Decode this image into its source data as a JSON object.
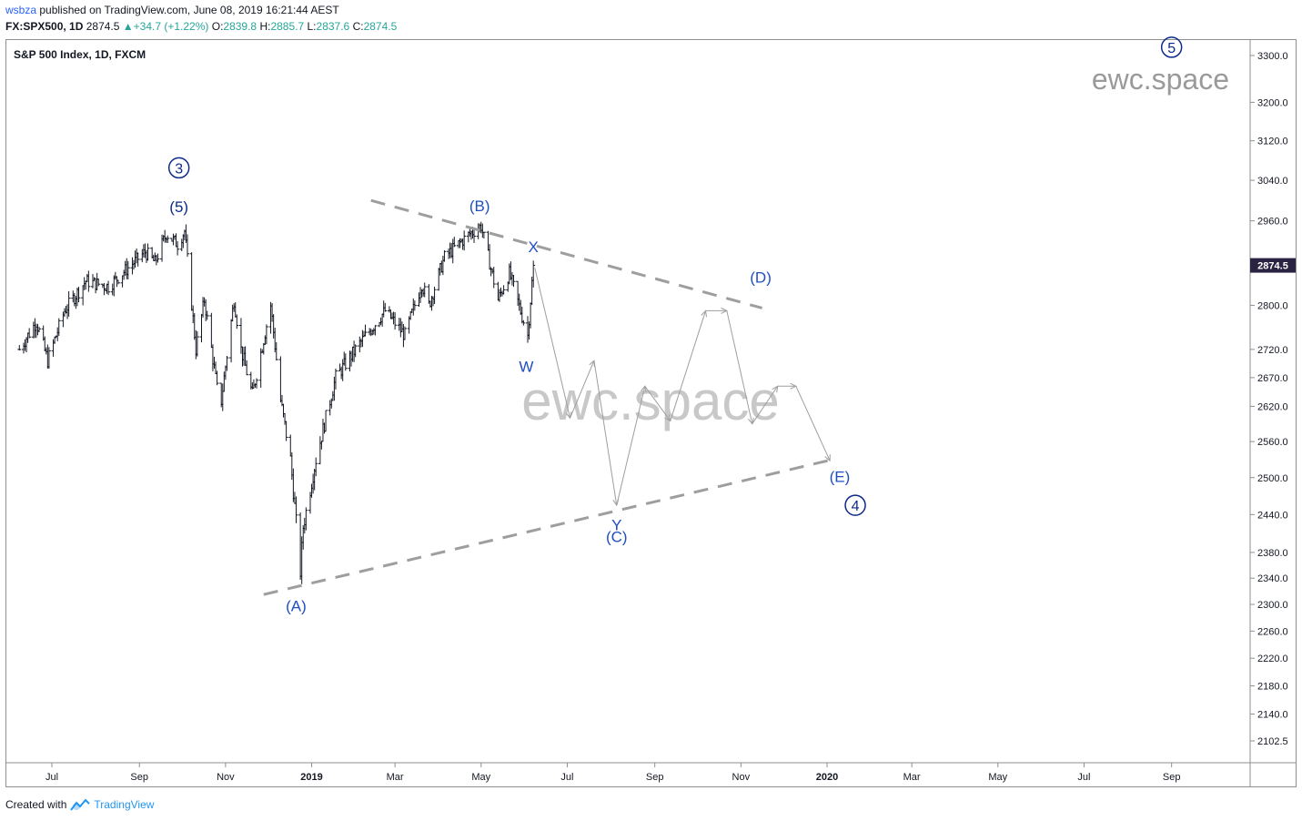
{
  "header": {
    "username": "wsbza",
    "published_text": "published on TradingView.com, June 08, 2019 16:21:44 AEST",
    "symbol": "FX:SPX500, 1D",
    "price": "2874.5",
    "change": "+34.7 (+1.22%)",
    "ohlc": {
      "o_label": "O:",
      "o": "2839.8",
      "h_label": "H:",
      "h": "2885.7",
      "l_label": "L:",
      "l": "2837.6",
      "c_label": "C:",
      "c": "2874.5"
    }
  },
  "chart_title": "S&P 500 Index, 1D, FXCM",
  "watermarks": [
    "ewc.space",
    "ewc.space"
  ],
  "last_price_label": "2874.5",
  "footer": {
    "created_with": "Created with",
    "brand": "TradingView"
  },
  "colors": {
    "candle": "#131722",
    "wave_label": "#1e4fc2",
    "wave_label_dark": "#0d2a8a",
    "trendline": "#9e9e9e",
    "projection": "#9e9e9e",
    "watermark": "#c8c8c8",
    "up": "#26a69a"
  },
  "chart_data": {
    "type": "ohlc-bar",
    "xlabel": "",
    "ylabel": "",
    "x_ticks": [
      {
        "label": "Jul",
        "date": "2018-07-01"
      },
      {
        "label": "Sep",
        "date": "2018-09-01"
      },
      {
        "label": "Nov",
        "date": "2018-11-01"
      },
      {
        "label": "2019",
        "date": "2019-01-01",
        "bold": true
      },
      {
        "label": "Mar",
        "date": "2019-03-01"
      },
      {
        "label": "May",
        "date": "2019-05-01"
      },
      {
        "label": "Jul",
        "date": "2019-07-01"
      },
      {
        "label": "Sep",
        "date": "2019-09-01"
      },
      {
        "label": "Nov",
        "date": "2019-11-01"
      },
      {
        "label": "2020",
        "date": "2020-01-01",
        "bold": true
      },
      {
        "label": "Mar",
        "date": "2020-03-01"
      },
      {
        "label": "May",
        "date": "2020-05-01"
      },
      {
        "label": "Jul",
        "date": "2020-07-01"
      },
      {
        "label": "Sep",
        "date": "2020-09-01"
      }
    ],
    "y_scale": "log",
    "y_ticks": [
      "3300.0",
      "3200.0",
      "3120.0",
      "3040.0",
      "2960.0",
      "2800.0",
      "2720.0",
      "2670.0",
      "2620.0",
      "2560.0",
      "2500.0",
      "2440.0",
      "2380.0",
      "2340.0",
      "2300.0",
      "2260.0",
      "2220.0",
      "2180.0",
      "2140.0",
      "2102.5"
    ],
    "price_path": [
      [
        "2018-06-08",
        2720
      ],
      [
        "2018-06-20",
        2770
      ],
      [
        "2018-06-28",
        2700
      ],
      [
        "2018-07-10",
        2790
      ],
      [
        "2018-07-25",
        2845
      ],
      [
        "2018-08-10",
        2835
      ],
      [
        "2018-08-20",
        2860
      ],
      [
        "2018-09-05",
        2900
      ],
      [
        "2018-09-12",
        2880
      ],
      [
        "2018-09-20",
        2935
      ],
      [
        "2018-09-28",
        2915
      ],
      [
        "2018-10-03",
        2940
      ],
      [
        "2018-10-11",
        2720
      ],
      [
        "2018-10-17",
        2810
      ],
      [
        "2018-10-26",
        2650
      ],
      [
        "2018-10-29",
        2630
      ],
      [
        "2018-11-07",
        2810
      ],
      [
        "2018-11-12",
        2720
      ],
      [
        "2018-11-20",
        2640
      ],
      [
        "2018-12-03",
        2800
      ],
      [
        "2018-12-10",
        2630
      ],
      [
        "2018-12-17",
        2530
      ],
      [
        "2018-12-24",
        2350
      ],
      [
        "2018-12-26",
        2420
      ],
      [
        "2019-01-04",
        2530
      ],
      [
        "2019-01-18",
        2670
      ],
      [
        "2019-02-04",
        2730
      ],
      [
        "2019-02-22",
        2790
      ],
      [
        "2019-03-08",
        2745
      ],
      [
        "2019-03-20",
        2840
      ],
      [
        "2019-03-25",
        2800
      ],
      [
        "2019-04-05",
        2890
      ],
      [
        "2019-04-23",
        2935
      ],
      [
        "2019-05-01",
        2950
      ],
      [
        "2019-05-07",
        2880
      ],
      [
        "2019-05-13",
        2810
      ],
      [
        "2019-05-21",
        2860
      ],
      [
        "2019-06-03",
        2745
      ],
      [
        "2019-06-07",
        2874.5
      ]
    ],
    "trendlines": [
      {
        "from": [
          "2018-11-28",
          2315
        ],
        "to": [
          "2020-01-05",
          2530
        ]
      },
      {
        "from": [
          "2019-02-12",
          3000
        ],
        "to": [
          "2019-11-16",
          2795
        ]
      }
    ],
    "projection_path": [
      [
        "2019-06-08",
        2870
      ],
      [
        "2019-07-03",
        2600
      ],
      [
        "2019-07-20",
        2700
      ],
      [
        "2019-08-05",
        2455
      ],
      [
        "2019-08-25",
        2655
      ],
      [
        "2019-09-12",
        2595
      ],
      [
        "2019-10-07",
        2790
      ],
      [
        "2019-10-22",
        2790
      ],
      [
        "2019-11-09",
        2590
      ],
      [
        "2019-11-27",
        2655
      ],
      [
        "2019-12-10",
        2655
      ],
      [
        "2020-01-03",
        2528
      ]
    ],
    "wave_labels": [
      {
        "text": "3",
        "circled": true,
        "date": "2018-09-29",
        "price": 3065
      },
      {
        "text": "(5)",
        "date": "2018-09-29",
        "price": 2988
      },
      {
        "text": "(A)",
        "date": "2018-12-21",
        "price": 2298
      },
      {
        "text": "(B)",
        "date": "2019-04-30",
        "price": 2990
      },
      {
        "text": "X",
        "date": "2019-06-07",
        "price": 2910
      },
      {
        "text": "W",
        "date": "2019-06-02",
        "price": 2690
      },
      {
        "text": "Y",
        "date": "2019-08-05",
        "price": 2424
      },
      {
        "text": "(C)",
        "date": "2019-08-05",
        "price": 2405
      },
      {
        "text": "(D)",
        "date": "2019-11-15",
        "price": 2852
      },
      {
        "text": "(E)",
        "date": "2020-01-10",
        "price": 2502
      },
      {
        "text": "4",
        "circled": true,
        "date": "2020-01-21",
        "price": 2455
      },
      {
        "text": "5",
        "circled": true,
        "date": "2020-09-01",
        "price": 3318
      }
    ]
  }
}
